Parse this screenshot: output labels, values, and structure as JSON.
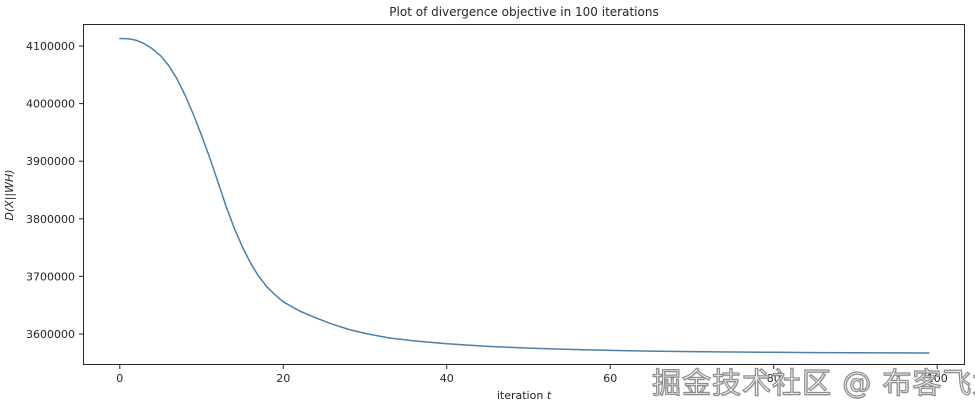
{
  "figure": {
    "watermark_text": "掘金技术社区 @ 布客飞龙",
    "watermark_outline_color": "#8c8c8c",
    "background_color": "#ffffff"
  },
  "chart_data": {
    "type": "line",
    "title": "Plot of divergence objective in 100 iterations",
    "xlabel_prefix": "iteration ",
    "xlabel_var": "t",
    "ylabel": "D(X||WH)",
    "xlim": [
      -4.5,
      103.4
    ],
    "ylim": [
      3546200,
      4138200
    ],
    "xticks": [
      0,
      20,
      40,
      60,
      80,
      100
    ],
    "yticks": [
      3600000,
      3700000,
      3800000,
      3900000,
      4000000,
      4100000
    ],
    "grid": false,
    "legend_position": "none",
    "line_color": "#4d7fa8",
    "axis_color": "#262626",
    "series": [
      {
        "name": "divergence objective",
        "points": [
          [
            0,
            4113000
          ],
          [
            1,
            4112500
          ],
          [
            2,
            4110000
          ],
          [
            3,
            4104000
          ],
          [
            4,
            4095000
          ],
          [
            5,
            4083000
          ],
          [
            6,
            4066000
          ],
          [
            7,
            4043000
          ],
          [
            8,
            4014000
          ],
          [
            9,
            3981000
          ],
          [
            10,
            3945000
          ],
          [
            11,
            3906000
          ],
          [
            12,
            3864000
          ],
          [
            13,
            3822000
          ],
          [
            14,
            3784000
          ],
          [
            15,
            3751000
          ],
          [
            16,
            3723000
          ],
          [
            17,
            3700000
          ],
          [
            18,
            3682000
          ],
          [
            19,
            3668000
          ],
          [
            20,
            3656000
          ],
          [
            22,
            3640000
          ],
          [
            24,
            3628000
          ],
          [
            26,
            3617000
          ],
          [
            28,
            3608000
          ],
          [
            30,
            3601000
          ],
          [
            33,
            3593000
          ],
          [
            36,
            3588000
          ],
          [
            40,
            3583000
          ],
          [
            45,
            3578500
          ],
          [
            50,
            3575500
          ],
          [
            55,
            3573200
          ],
          [
            60,
            3571500
          ],
          [
            65,
            3570300
          ],
          [
            70,
            3569400
          ],
          [
            75,
            3568700
          ],
          [
            80,
            3568200
          ],
          [
            85,
            3567800
          ],
          [
            90,
            3567500
          ],
          [
            95,
            3567200
          ],
          [
            99,
            3567000
          ]
        ]
      }
    ]
  }
}
